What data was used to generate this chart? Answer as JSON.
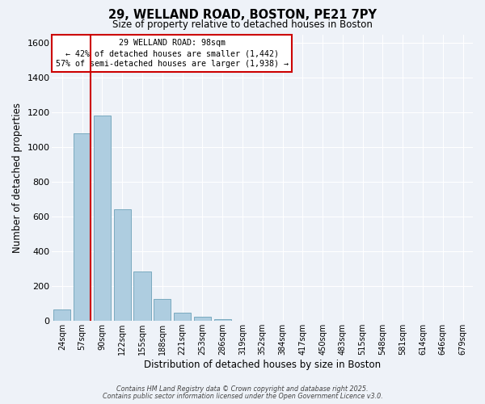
{
  "title_line1": "29, WELLAND ROAD, BOSTON, PE21 7PY",
  "title_line2": "Size of property relative to detached houses in Boston",
  "xlabel": "Distribution of detached houses by size in Boston",
  "ylabel": "Number of detached properties",
  "bar_labels": [
    "24sqm",
    "57sqm",
    "90sqm",
    "122sqm",
    "155sqm",
    "188sqm",
    "221sqm",
    "253sqm",
    "286sqm",
    "319sqm",
    "352sqm",
    "384sqm",
    "417sqm",
    "450sqm",
    "483sqm",
    "515sqm",
    "548sqm",
    "581sqm",
    "614sqm",
    "646sqm",
    "679sqm"
  ],
  "bar_values": [
    65,
    1080,
    1180,
    640,
    285,
    125,
    45,
    20,
    10,
    0,
    0,
    0,
    0,
    0,
    0,
    0,
    0,
    0,
    0,
    0,
    0
  ],
  "bar_color": "#aecde0",
  "bar_edge_color": "#7aaabf",
  "vline_color": "#cc0000",
  "annotation_title": "29 WELLAND ROAD: 98sqm",
  "annotation_line2": "← 42% of detached houses are smaller (1,442)",
  "annotation_line3": "57% of semi-detached houses are larger (1,938) →",
  "annotation_box_color": "#ffffff",
  "annotation_box_edge": "#cc0000",
  "ylim": [
    0,
    1650
  ],
  "yticks": [
    0,
    200,
    400,
    600,
    800,
    1000,
    1200,
    1400,
    1600
  ],
  "background_color": "#eef2f8",
  "grid_color": "#ffffff",
  "footer_line1": "Contains HM Land Registry data © Crown copyright and database right 2025.",
  "footer_line2": "Contains public sector information licensed under the Open Government Licence v3.0."
}
